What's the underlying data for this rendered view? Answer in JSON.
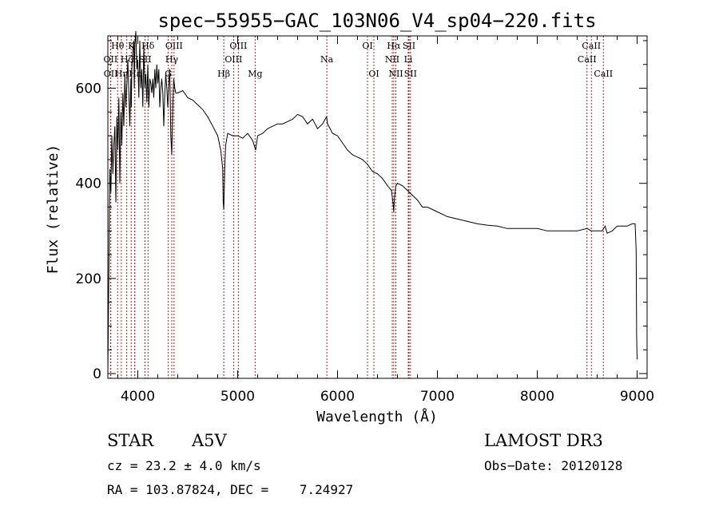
{
  "chart_data": {
    "type": "line",
    "title": "spec−55955−GAC_103N06_V4_sp04−220.fits",
    "xlabel": "Wavelength (Å)",
    "ylabel": "Flux (relative)",
    "xlim": [
      3700,
      9100
    ],
    "ylim": [
      -10,
      710
    ],
    "xticks": [
      4000,
      5000,
      6000,
      7000,
      8000,
      9000
    ],
    "yticks": [
      0,
      200,
      400,
      600
    ],
    "grid": false,
    "series": [
      {
        "name": "spectrum",
        "x": [
          3700,
          3710,
          3720,
          3730,
          3740,
          3750,
          3760,
          3770,
          3780,
          3790,
          3800,
          3810,
          3820,
          3830,
          3840,
          3850,
          3860,
          3870,
          3880,
          3890,
          3900,
          3910,
          3920,
          3930,
          3935,
          3940,
          3950,
          3960,
          3965,
          3970,
          3980,
          3990,
          4000,
          4010,
          4020,
          4030,
          4040,
          4050,
          4060,
          4070,
          4080,
          4090,
          4100,
          4110,
          4120,
          4130,
          4140,
          4150,
          4160,
          4170,
          4180,
          4190,
          4200,
          4210,
          4220,
          4230,
          4240,
          4250,
          4260,
          4270,
          4280,
          4290,
          4300,
          4310,
          4320,
          4330,
          4340,
          4350,
          4360,
          4370,
          4380,
          4400,
          4450,
          4500,
          4550,
          4600,
          4650,
          4700,
          4750,
          4800,
          4830,
          4850,
          4855,
          4861,
          4870,
          4880,
          4900,
          4950,
          5000,
          5050,
          5100,
          5150,
          5180,
          5200,
          5250,
          5300,
          5350,
          5400,
          5450,
          5500,
          5550,
          5600,
          5650,
          5700,
          5750,
          5800,
          5850,
          5890,
          5900,
          5950,
          6000,
          6050,
          6100,
          6150,
          6200,
          6250,
          6300,
          6350,
          6400,
          6450,
          6500,
          6540,
          6555,
          6563,
          6570,
          6585,
          6600,
          6650,
          6700,
          6750,
          6800,
          6850,
          6900,
          6950,
          7000,
          7050,
          7100,
          7200,
          7300,
          7400,
          7500,
          7600,
          7700,
          7800,
          7900,
          8000,
          8100,
          8200,
          8300,
          8400,
          8500,
          8540,
          8560,
          8600,
          8650,
          8680,
          8700,
          8750,
          8800,
          8850,
          8900,
          8950,
          8980,
          8990,
          8995,
          9000
        ],
        "values": [
          0,
          220,
          430,
          380,
          500,
          420,
          480,
          520,
          360,
          540,
          470,
          580,
          400,
          550,
          480,
          590,
          520,
          630,
          560,
          610,
          660,
          590,
          520,
          620,
          560,
          640,
          680,
          700,
          600,
          690,
          720,
          640,
          660,
          580,
          700,
          600,
          640,
          560,
          690,
          600,
          630,
          570,
          650,
          560,
          620,
          610,
          590,
          620,
          580,
          640,
          600,
          650,
          610,
          640,
          560,
          600,
          620,
          590,
          520,
          590,
          630,
          600,
          560,
          610,
          640,
          500,
          460,
          560,
          620,
          600,
          590,
          590,
          595,
          580,
          575,
          565,
          555,
          540,
          520,
          500,
          470,
          430,
          360,
          345,
          430,
          480,
          505,
          500,
          500,
          495,
          505,
          490,
          470,
          500,
          505,
          515,
          520,
          525,
          525,
          530,
          535,
          545,
          540,
          525,
          535,
          515,
          525,
          540,
          525,
          505,
          500,
          485,
          470,
          460,
          455,
          450,
          440,
          425,
          420,
          410,
          395,
          385,
          360,
          340,
          370,
          395,
          400,
          395,
          385,
          375,
          365,
          350,
          350,
          345,
          340,
          335,
          330,
          325,
          320,
          315,
          312,
          310,
          305,
          305,
          305,
          305,
          300,
          300,
          300,
          300,
          305,
          300,
          300,
          300,
          300,
          310,
          295,
          300,
          310,
          310,
          310,
          315,
          315,
          260,
          80,
          30
        ]
      }
    ],
    "lines": [
      {
        "label": "Hθ",
        "wavelength": 3798,
        "row": 0
      },
      {
        "label": "OII",
        "wavelength": 3727,
        "row": 1
      },
      {
        "label": "OII",
        "wavelength": 3729,
        "row": 2
      },
      {
        "label": "Hη",
        "wavelength": 3835,
        "row": 2
      },
      {
        "label": "Hζ",
        "wavelength": 3889,
        "row": 1
      },
      {
        "label": "K",
        "wavelength": 3934,
        "row": 0
      },
      {
        "label": "H",
        "wavelength": 3969,
        "row": 1
      },
      {
        "label": "Hε",
        "wavelength": 3970,
        "row": 2
      },
      {
        "label": "Hδ",
        "wavelength": 4102,
        "row": 0
      },
      {
        "label": "SII",
        "wavelength": 4072,
        "row": 1
      },
      {
        "label": "OIII",
        "wavelength": 4363,
        "row": 0
      },
      {
        "label": "Hγ",
        "wavelength": 4340,
        "row": 1
      },
      {
        "label": "G",
        "wavelength": 4305,
        "row": 2
      },
      {
        "label": "OIII",
        "wavelength": 5007,
        "row": 0
      },
      {
        "label": "OIII",
        "wavelength": 4959,
        "row": 1
      },
      {
        "label": "Hβ",
        "wavelength": 4861,
        "row": 2
      },
      {
        "label": "Mg",
        "wavelength": 5175,
        "row": 2
      },
      {
        "label": "Na",
        "wavelength": 5893,
        "row": 1
      },
      {
        "label": "OI",
        "wavelength": 6300,
        "row": 0
      },
      {
        "label": "OI",
        "wavelength": 6364,
        "row": 2
      },
      {
        "label": "Hα",
        "wavelength": 6563,
        "row": 0
      },
      {
        "label": "SII",
        "wavelength": 6716,
        "row": 0
      },
      {
        "label": "NII",
        "wavelength": 6548,
        "row": 1
      },
      {
        "label": "Li",
        "wavelength": 6708,
        "row": 1
      },
      {
        "label": "NII",
        "wavelength": 6584,
        "row": 2
      },
      {
        "label": "SII",
        "wavelength": 6731,
        "row": 2
      },
      {
        "label": "CaII",
        "wavelength": 8542,
        "row": 0
      },
      {
        "label": "CaII",
        "wavelength": 8498,
        "row": 1
      },
      {
        "label": "CaII",
        "wavelength": 8662,
        "row": 2
      }
    ]
  },
  "info": {
    "object_class": "STAR",
    "subclass": "A5V",
    "survey": "LAMOST DR3",
    "cz": "cz = 23.2 ± 4.0 km/s",
    "obs_date": "Obs−Date: 20120128",
    "coords": "RA = 103.87824, DEC =    7.24927"
  }
}
